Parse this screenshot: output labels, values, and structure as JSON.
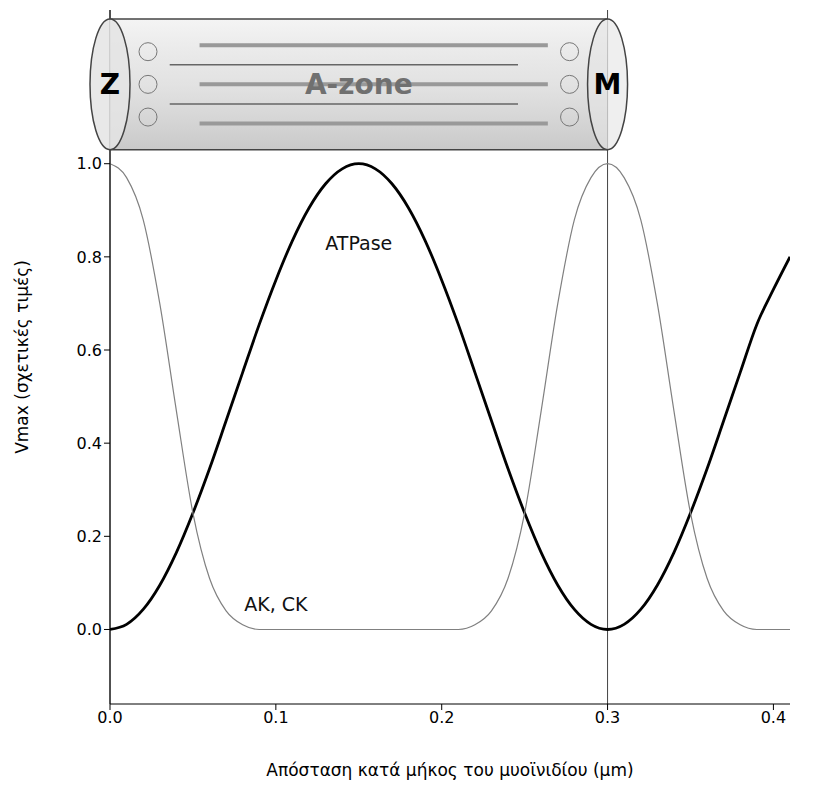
{
  "chart_data": {
    "type": "line",
    "xlabel": "Απόσταση κατά μήκος του μυοϊνιδίου (μm)",
    "ylabel": "Vmax (σχετικές τιμές)",
    "x": [
      0,
      0.01,
      0.02,
      0.03,
      0.04,
      0.05,
      0.06,
      0.07,
      0.08,
      0.09,
      0.1,
      0.11,
      0.12,
      0.13,
      0.14,
      0.15,
      0.16,
      0.17,
      0.18,
      0.19,
      0.2,
      0.21,
      0.22,
      0.23,
      0.24,
      0.25,
      0.26,
      0.27,
      0.28,
      0.29,
      0.3,
      0.31,
      0.32,
      0.33,
      0.34,
      0.35,
      0.36,
      0.37,
      0.38,
      0.39,
      0.4,
      0.41
    ],
    "series": [
      {
        "name": "ATPase",
        "color": "#000000",
        "values": [
          0,
          0.011,
          0.043,
          0.095,
          0.165,
          0.25,
          0.345,
          0.448,
          0.552,
          0.655,
          0.75,
          0.835,
          0.905,
          0.957,
          0.989,
          1,
          0.989,
          0.957,
          0.905,
          0.835,
          0.75,
          0.655,
          0.552,
          0.448,
          0.345,
          0.25,
          0.165,
          0.095,
          0.043,
          0.011,
          0,
          0.011,
          0.043,
          0.095,
          0.165,
          0.25,
          0.345,
          0.448,
          0.552,
          0.655,
          0.73,
          0.8
        ]
      },
      {
        "name": "AK, CK",
        "color": "#808080",
        "values": [
          1,
          0.97,
          0.88,
          0.7,
          0.47,
          0.25,
          0.11,
          0.04,
          0.01,
          0,
          0,
          0,
          0,
          0,
          0,
          0,
          0,
          0,
          0,
          0,
          0,
          0,
          0.01,
          0.04,
          0.11,
          0.25,
          0.47,
          0.7,
          0.88,
          0.97,
          1,
          0.97,
          0.88,
          0.7,
          0.47,
          0.25,
          0.11,
          0.04,
          0.01,
          0,
          0,
          0
        ]
      }
    ],
    "xlim": [
      0,
      0.41
    ],
    "ylim": [
      -0.16,
      1.33
    ],
    "xticks": [
      {
        "value": 0,
        "label": "0.0"
      },
      0.1,
      0.2,
      0.3,
      0.4
    ],
    "yticks": [
      {
        "value": 0,
        "label": "0.0"
      },
      0.2,
      0.4,
      0.6,
      0.8,
      {
        "value": 1,
        "label": "1.0"
      }
    ],
    "grid": false,
    "vlines": [
      0,
      0.3
    ],
    "annotations": [
      {
        "text": "ATPase",
        "x": 0.15,
        "y": 0.83
      },
      {
        "text": "AK, CK",
        "x": 0.1,
        "y": 0.055
      }
    ],
    "diagram": {
      "left_label": "Z",
      "center_label": "A-zone",
      "right_label": "M"
    }
  }
}
